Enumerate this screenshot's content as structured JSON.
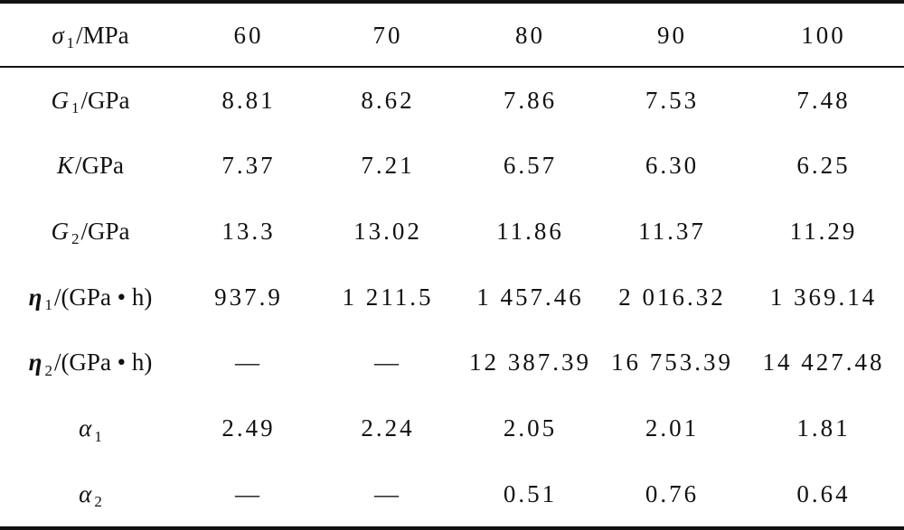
{
  "table": {
    "header": {
      "label": {
        "symbol": "σ",
        "sub": "1",
        "unit": "/MPa"
      },
      "columns": [
        "60",
        "70",
        "80",
        "90",
        "100"
      ]
    },
    "rows": [
      {
        "label": {
          "symbol": "G",
          "sub": "1",
          "unit": "/GPa"
        },
        "cells": [
          "8.81",
          "8.62",
          "7.86",
          "7.53",
          "7.48"
        ]
      },
      {
        "label": {
          "symbol": "K",
          "unit": "/GPa"
        },
        "cells": [
          "7.37",
          "7.21",
          "6.57",
          "6.30",
          "6.25"
        ]
      },
      {
        "label": {
          "symbol": "G",
          "sub": "2",
          "unit": "/GPa"
        },
        "cells": [
          "13.3",
          "13.02",
          "11.86",
          "11.37",
          "11.29"
        ]
      },
      {
        "label": {
          "symbol": "η",
          "sub": "1",
          "unit": "/(GPa • h)"
        },
        "cells": [
          "937.9",
          "1 211.5",
          "1 457.46",
          "2 016.32",
          "1 369.14"
        ]
      },
      {
        "label": {
          "symbol": "η",
          "sub": "2",
          "unit": "/(GPa • h)"
        },
        "cells": [
          "—",
          "—",
          "12 387.39",
          "16 753.39",
          "14 427.48"
        ]
      },
      {
        "label": {
          "symbol": "α",
          "sub": "1"
        },
        "cells": [
          "2.49",
          "2.24",
          "2.05",
          "2.01",
          "1.81"
        ]
      },
      {
        "label": {
          "symbol": "α",
          "sub": "2"
        },
        "cells": [
          "—",
          "—",
          "0.51",
          "0.76",
          "0.64"
        ]
      }
    ]
  }
}
